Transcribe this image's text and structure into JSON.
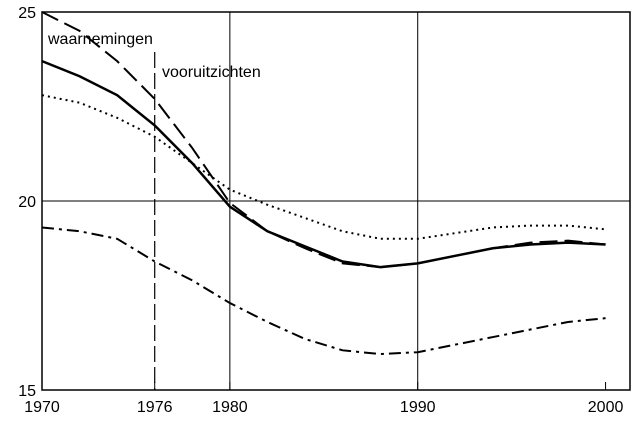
{
  "chart_data": {
    "type": "line",
    "annotations": [
      "waarnemingen",
      "vooruitzichten"
    ],
    "x": [
      1970,
      1972,
      1974,
      1976,
      1978,
      1980,
      1982,
      1984,
      1986,
      1988,
      1990,
      1992,
      1994,
      1996,
      1998,
      2000
    ],
    "series": [
      {
        "color": "#000000",
        "style": "solid",
        "values": [
          23.7,
          23.3,
          22.8,
          22.0,
          21.0,
          19.85,
          19.2,
          18.8,
          18.4,
          18.25,
          18.35,
          18.55,
          18.75,
          18.85,
          18.9,
          18.85
        ]
      },
      {
        "color": "#000000",
        "style": "dashed",
        "values": [
          25.0,
          24.5,
          23.7,
          22.7,
          21.4,
          19.95,
          19.2,
          18.75,
          18.35,
          18.25,
          18.35,
          18.55,
          18.75,
          18.9,
          18.95,
          18.85
        ]
      },
      {
        "color": "#000000",
        "style": "dotted",
        "values": [
          22.8,
          22.6,
          22.2,
          21.7,
          21.0,
          20.3,
          19.9,
          19.55,
          19.2,
          19.0,
          19.0,
          19.15,
          19.3,
          19.35,
          19.35,
          19.25
        ]
      },
      {
        "color": "#000000",
        "style": "dashdot",
        "values": [
          19.3,
          19.2,
          19.0,
          18.4,
          17.9,
          17.3,
          16.8,
          16.35,
          16.05,
          15.95,
          16.0,
          16.2,
          16.4,
          16.6,
          16.8,
          16.9
        ]
      }
    ],
    "xlim": [
      1970,
      2001.3
    ],
    "ylim": [
      15,
      25
    ],
    "xticks": [
      1970,
      1976,
      1980,
      1990,
      2000
    ],
    "yticks": [
      15,
      20,
      25
    ],
    "xgrid": [
      1980,
      1990
    ],
    "ygrid": [
      20
    ],
    "divider": 1976
  }
}
